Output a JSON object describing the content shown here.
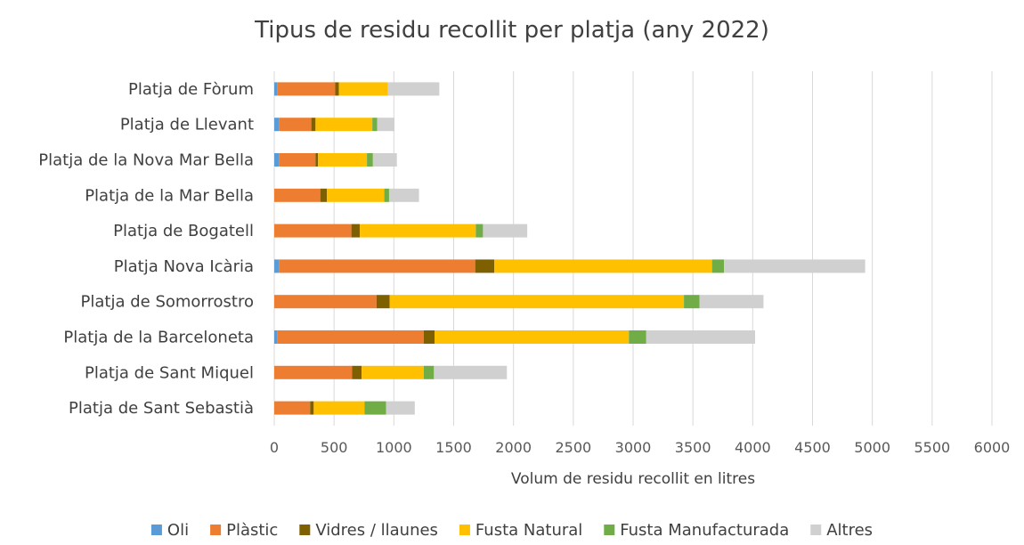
{
  "chart_data": {
    "type": "bar",
    "orientation": "horizontal",
    "stacked": true,
    "title": "Tipus de residu recollit per platja (any 2022)",
    "xlabel": "Volum de residu recollit en litres",
    "ylabel": "",
    "xlim": [
      0,
      6000
    ],
    "xticks": [
      0,
      500,
      1000,
      1500,
      2000,
      2500,
      3000,
      3500,
      4000,
      4500,
      5000,
      5500,
      6000
    ],
    "grid": true,
    "legend_position": "bottom",
    "categories": [
      "Platja de Fòrum",
      "Platja de Llevant",
      "Platja de la Nova Mar Bella",
      "Platja de la Mar Bella",
      "Platja de Bogatell",
      "Platja Nova Icària",
      "Platja de Somorrostro",
      "Platja de la Barceloneta",
      "Platja de Sant Miquel",
      "Platja de Sant Sebastià"
    ],
    "series": [
      {
        "name": "Oli",
        "color": "#5B9BD5",
        "values": [
          25,
          40,
          40,
          0,
          0,
          40,
          0,
          25,
          0,
          0
        ]
      },
      {
        "name": "Plàstic",
        "color": "#ED7D31",
        "values": [
          485,
          270,
          305,
          385,
          645,
          1640,
          855,
          1225,
          650,
          300
        ]
      },
      {
        "name": "Vidres / llaunes",
        "color": "#7F6000",
        "values": [
          30,
          35,
          20,
          55,
          70,
          160,
          110,
          90,
          80,
          30
        ]
      },
      {
        "name": "Fusta Natural",
        "color": "#FFC000",
        "values": [
          410,
          475,
          410,
          480,
          970,
          1820,
          2460,
          1625,
          520,
          425
        ]
      },
      {
        "name": "Fusta Manufacturada",
        "color": "#70AD47",
        "values": [
          0,
          40,
          50,
          40,
          60,
          100,
          130,
          145,
          85,
          180
        ]
      },
      {
        "name": "Altres",
        "color": "#D0D0D0",
        "values": [
          430,
          145,
          200,
          250,
          370,
          1180,
          535,
          910,
          610,
          240
        ]
      }
    ]
  }
}
